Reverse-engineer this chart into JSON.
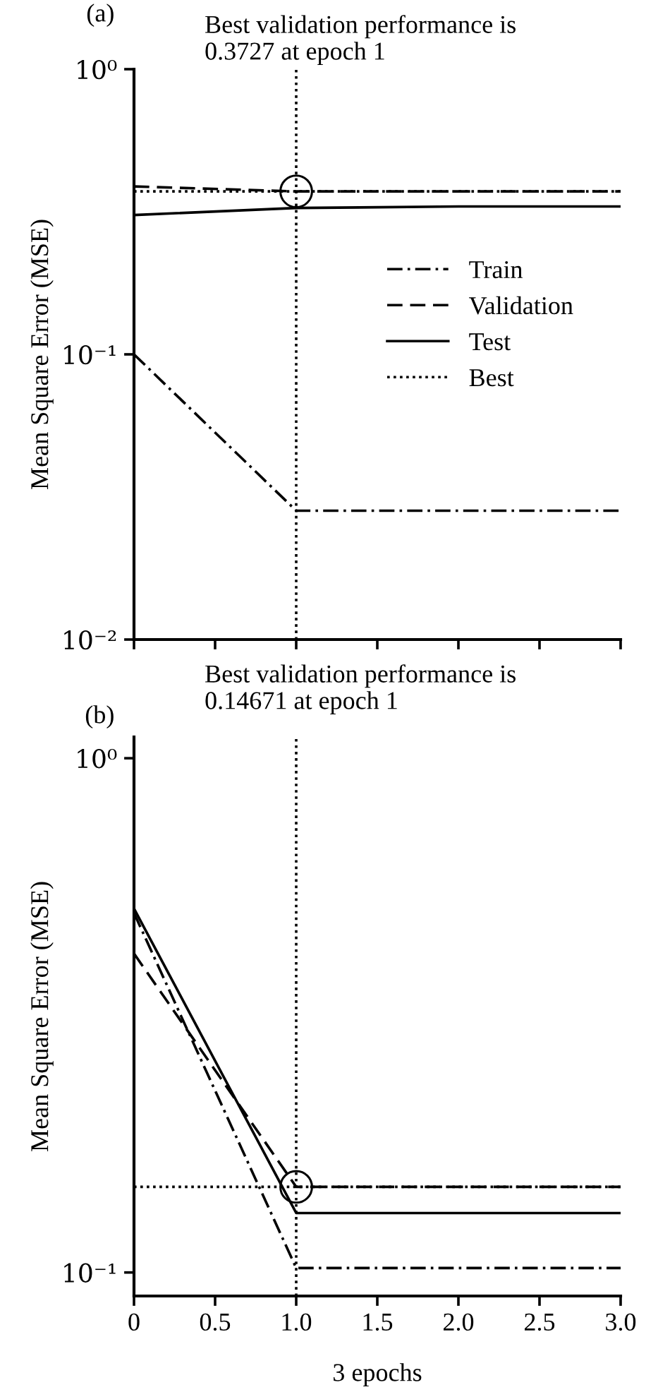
{
  "chart_data": [
    {
      "type": "line",
      "title": "Best validation performance is\n0.3727 at epoch 1",
      "ylabel": "Mean Square Error (MSE)",
      "annotations": [
        "(a)"
      ],
      "x": [
        0,
        1,
        2,
        3
      ],
      "log": "y",
      "ylim": [
        0.01,
        1
      ],
      "yticks": [
        {
          "value": 0.01,
          "label": "10⁻²"
        },
        {
          "value": 0.1,
          "label": "10⁻¹"
        },
        {
          "value": 1,
          "label": "10⁰"
        }
      ],
      "xlim": [
        0,
        3
      ],
      "xticks": [
        0,
        0.5,
        1,
        1.5,
        2,
        2.5,
        3
      ],
      "tick_labels": "y",
      "legend": "right",
      "grid": false,
      "series": [
        {
          "name": "Train",
          "color": "#000000",
          "line_style": "dashdot",
          "values": [
            0.1,
            0.0283,
            0.0283,
            0.0283
          ]
        },
        {
          "name": "Validation",
          "color": "#000000",
          "line_style": "dashed",
          "values": [
            0.388,
            0.3727,
            0.3727,
            0.3727
          ]
        },
        {
          "name": "Test",
          "color": "#000000",
          "line_style": "solid",
          "values": [
            0.308,
            0.326,
            0.33,
            0.33
          ]
        },
        {
          "name": "Best",
          "type": "scatter",
          "color": "#000000",
          "marker": "circle",
          "line_style": "dotted",
          "x": [
            1
          ],
          "values": [
            0.3727
          ]
        }
      ],
      "ref_lines": [
        {
          "axis": "x",
          "value": 1,
          "line_style": "dotted",
          "color": "#000000"
        },
        {
          "axis": "y",
          "value": 0.3727,
          "line_style": "dotted",
          "color": "#000000"
        }
      ]
    },
    {
      "type": "line",
      "title": "Best validation performance is\n0.14671 at epoch 1",
      "ylabel": "Mean Square Error (MSE)",
      "xlabel": "3 epochs",
      "annotations": [
        "(b)"
      ],
      "x": [
        0,
        1,
        2,
        3
      ],
      "log": "y",
      "ylim": [
        0.09,
        1.1
      ],
      "yticks": [
        {
          "value": 0.1,
          "label": "10⁻¹"
        },
        {
          "value": 1,
          "label": "10⁰"
        }
      ],
      "xlim": [
        0,
        3
      ],
      "xticks": [
        0,
        0.5,
        {
          "value": 1,
          "label": "1.0"
        },
        1.5,
        {
          "value": 2,
          "label": "2.0"
        },
        2.5,
        {
          "value": 3,
          "label": "3.0"
        }
      ],
      "grid": false,
      "series": [
        {
          "color": "#000000",
          "line_style": "dashdot",
          "values": [
            0.5,
            0.102,
            0.102,
            0.102
          ]
        },
        {
          "color": "#000000",
          "line_style": "dashed",
          "values": [
            0.417,
            0.14671,
            0.14671,
            0.14671
          ]
        },
        {
          "color": "#000000",
          "line_style": "solid",
          "values": [
            0.51,
            0.1305,
            0.1305,
            0.1305
          ]
        },
        {
          "type": "scatter",
          "color": "#000000",
          "marker": "circle",
          "x": [
            1
          ],
          "values": [
            0.14671
          ]
        }
      ],
      "ref_lines": [
        {
          "axis": "x",
          "value": 1,
          "line_style": "dotted",
          "color": "#000000"
        },
        {
          "axis": "y",
          "value": 0.14671,
          "line_style": "dotted",
          "color": "#000000"
        }
      ]
    }
  ]
}
